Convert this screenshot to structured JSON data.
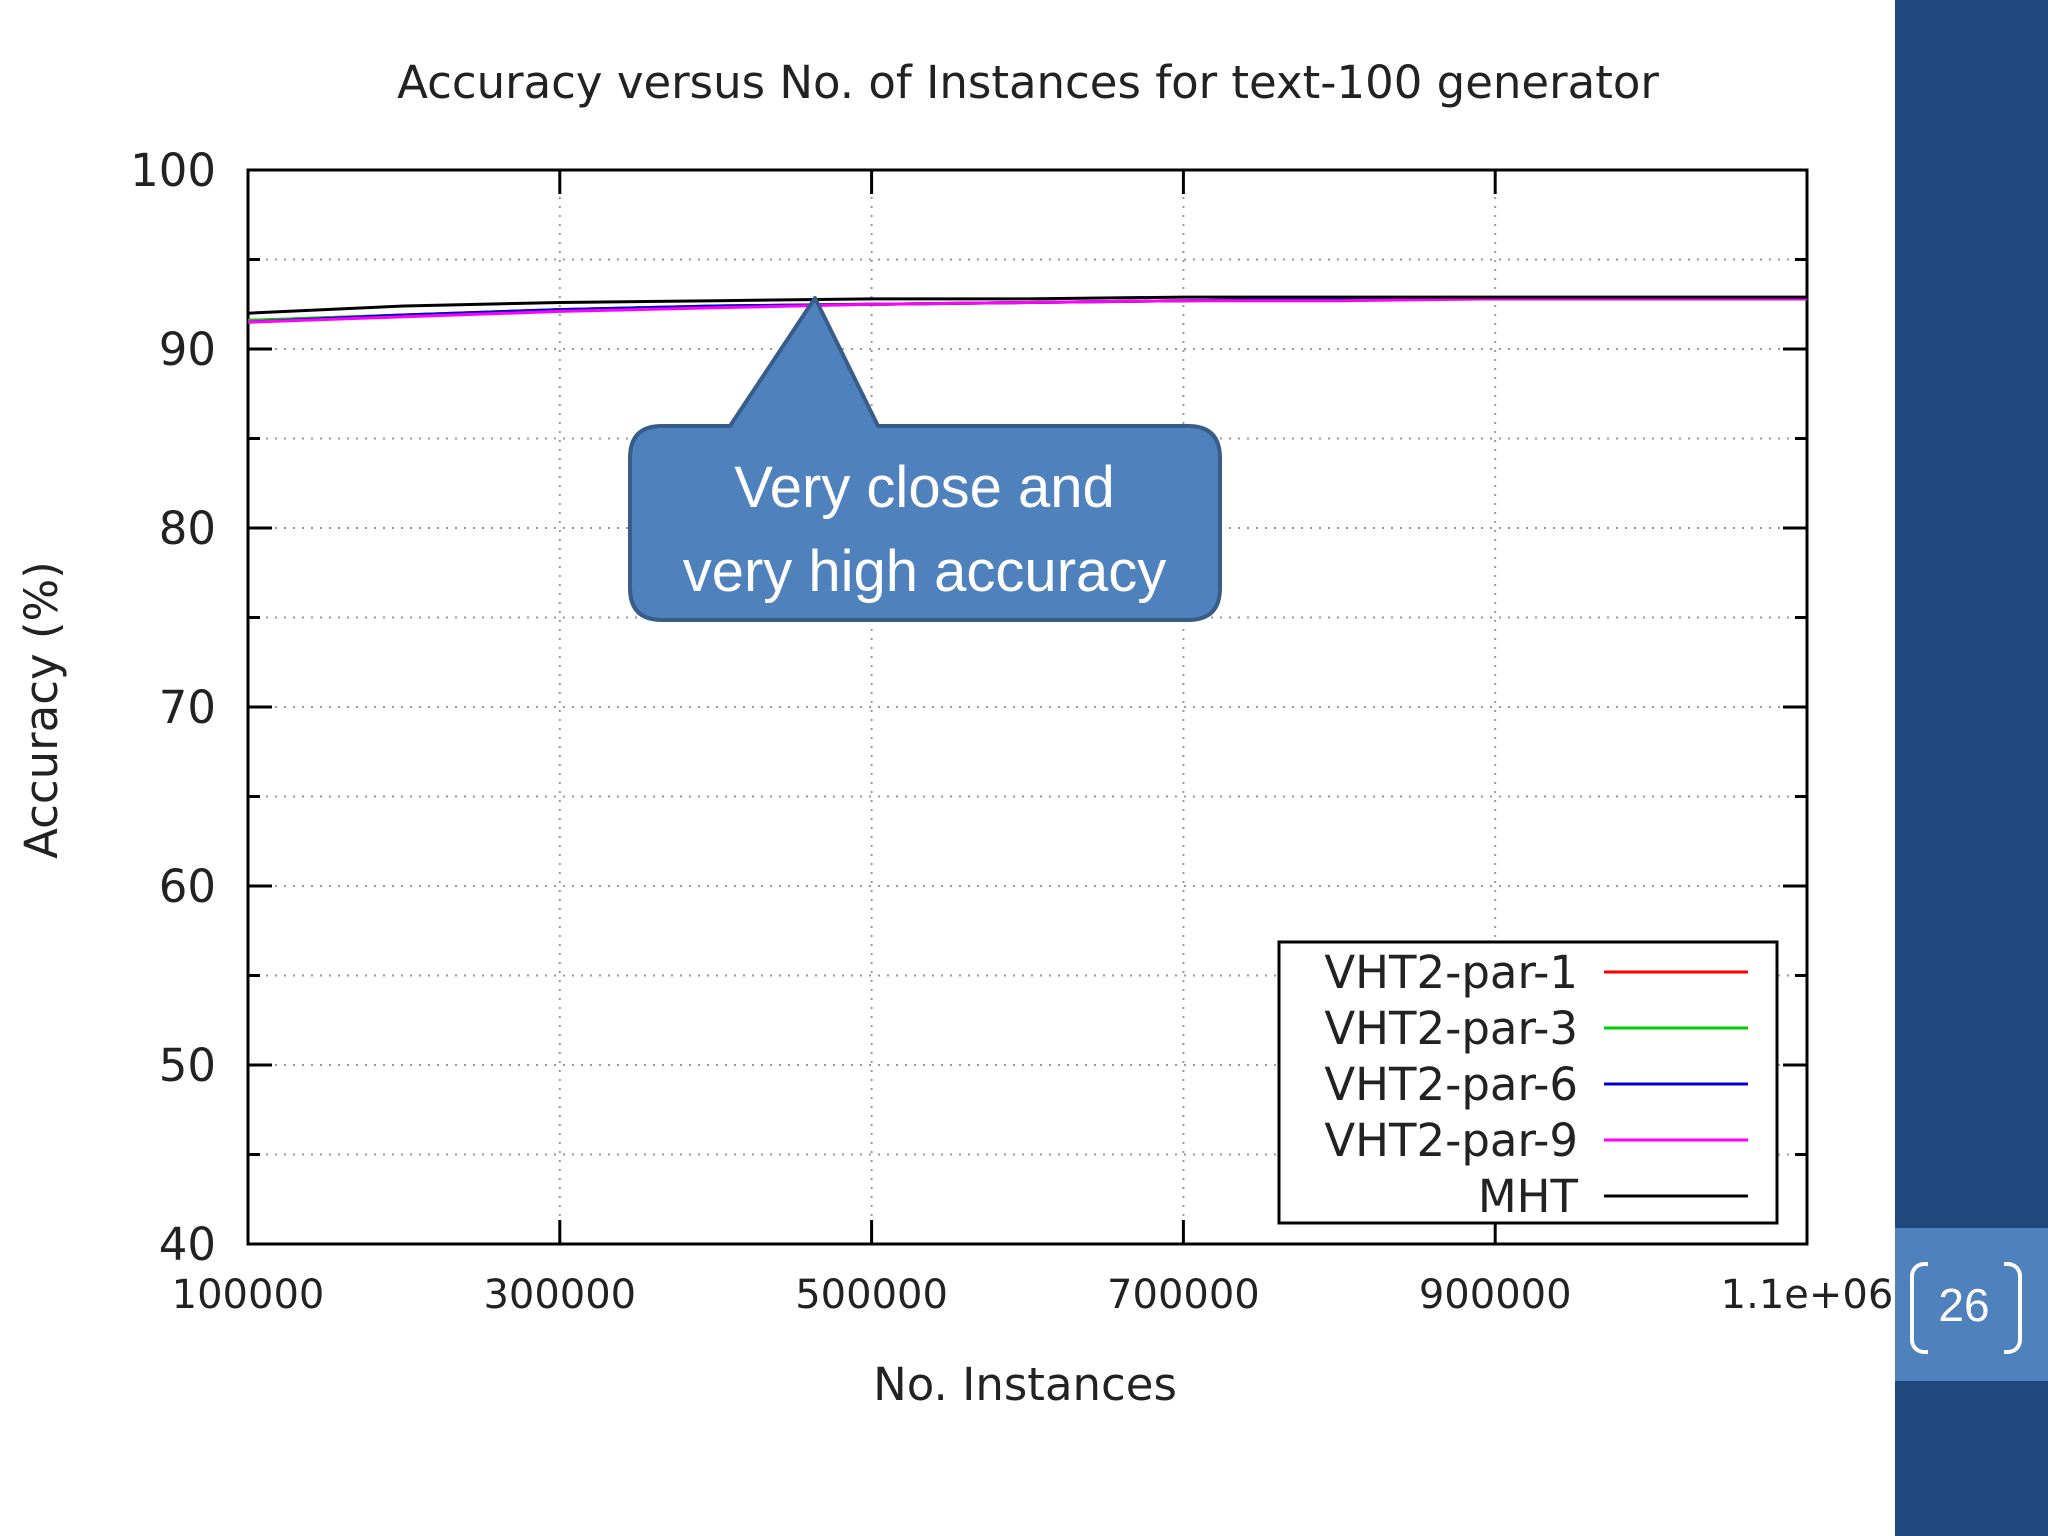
{
  "slide": {
    "page_number": "26",
    "callout": {
      "line1": "Very close and",
      "line2": "very high accuracy"
    }
  },
  "colors": {
    "sidebar": "#1f497d",
    "page_box": "#4f81bd",
    "callout_fill": "#4f81bd",
    "callout_border": "#385d8a"
  },
  "chart_data": {
    "type": "line",
    "title": "Accuracy versus No. of Instances for text-100 generator",
    "xlabel": "No. Instances",
    "ylabel": "Accuracy (%)",
    "xlim": [
      100000,
      1100000
    ],
    "ylim": [
      40,
      100
    ],
    "x_ticks": [
      100000,
      300000,
      500000,
      700000,
      900000,
      1100000
    ],
    "x_tick_labels": [
      "100000",
      "300000",
      "500000",
      "700000",
      "900000",
      "1.1e+06"
    ],
    "y_ticks": [
      40,
      50,
      60,
      70,
      80,
      90,
      100
    ],
    "y_tick_labels": [
      "40",
      "50",
      "60",
      "70",
      "80",
      "90",
      "100"
    ],
    "grid": true,
    "legend_position": "bottom-right",
    "x": [
      100000,
      200000,
      300000,
      400000,
      500000,
      600000,
      700000,
      800000,
      900000,
      1000000,
      1100000
    ],
    "series": [
      {
        "name": "VHT2-par-1",
        "color": "#ff0000",
        "values": [
          91.6,
          91.9,
          92.2,
          92.4,
          92.5,
          92.6,
          92.7,
          92.8,
          92.8,
          92.8,
          92.8
        ]
      },
      {
        "name": "VHT2-par-3",
        "color": "#00cc00",
        "values": [
          91.6,
          91.9,
          92.2,
          92.4,
          92.5,
          92.6,
          92.7,
          92.8,
          92.8,
          92.8,
          92.8
        ]
      },
      {
        "name": "VHT2-par-6",
        "color": "#0000cc",
        "values": [
          91.5,
          91.9,
          92.2,
          92.4,
          92.5,
          92.6,
          92.7,
          92.8,
          92.8,
          92.8,
          92.8
        ]
      },
      {
        "name": "VHT2-par-9",
        "color": "#ff00ff",
        "values": [
          91.5,
          91.8,
          92.1,
          92.3,
          92.5,
          92.6,
          92.7,
          92.7,
          92.8,
          92.8,
          92.8
        ]
      },
      {
        "name": "MHT",
        "color": "#000000",
        "values": [
          92.0,
          92.4,
          92.6,
          92.7,
          92.8,
          92.8,
          92.9,
          92.9,
          92.9,
          92.9,
          92.9
        ]
      }
    ]
  }
}
